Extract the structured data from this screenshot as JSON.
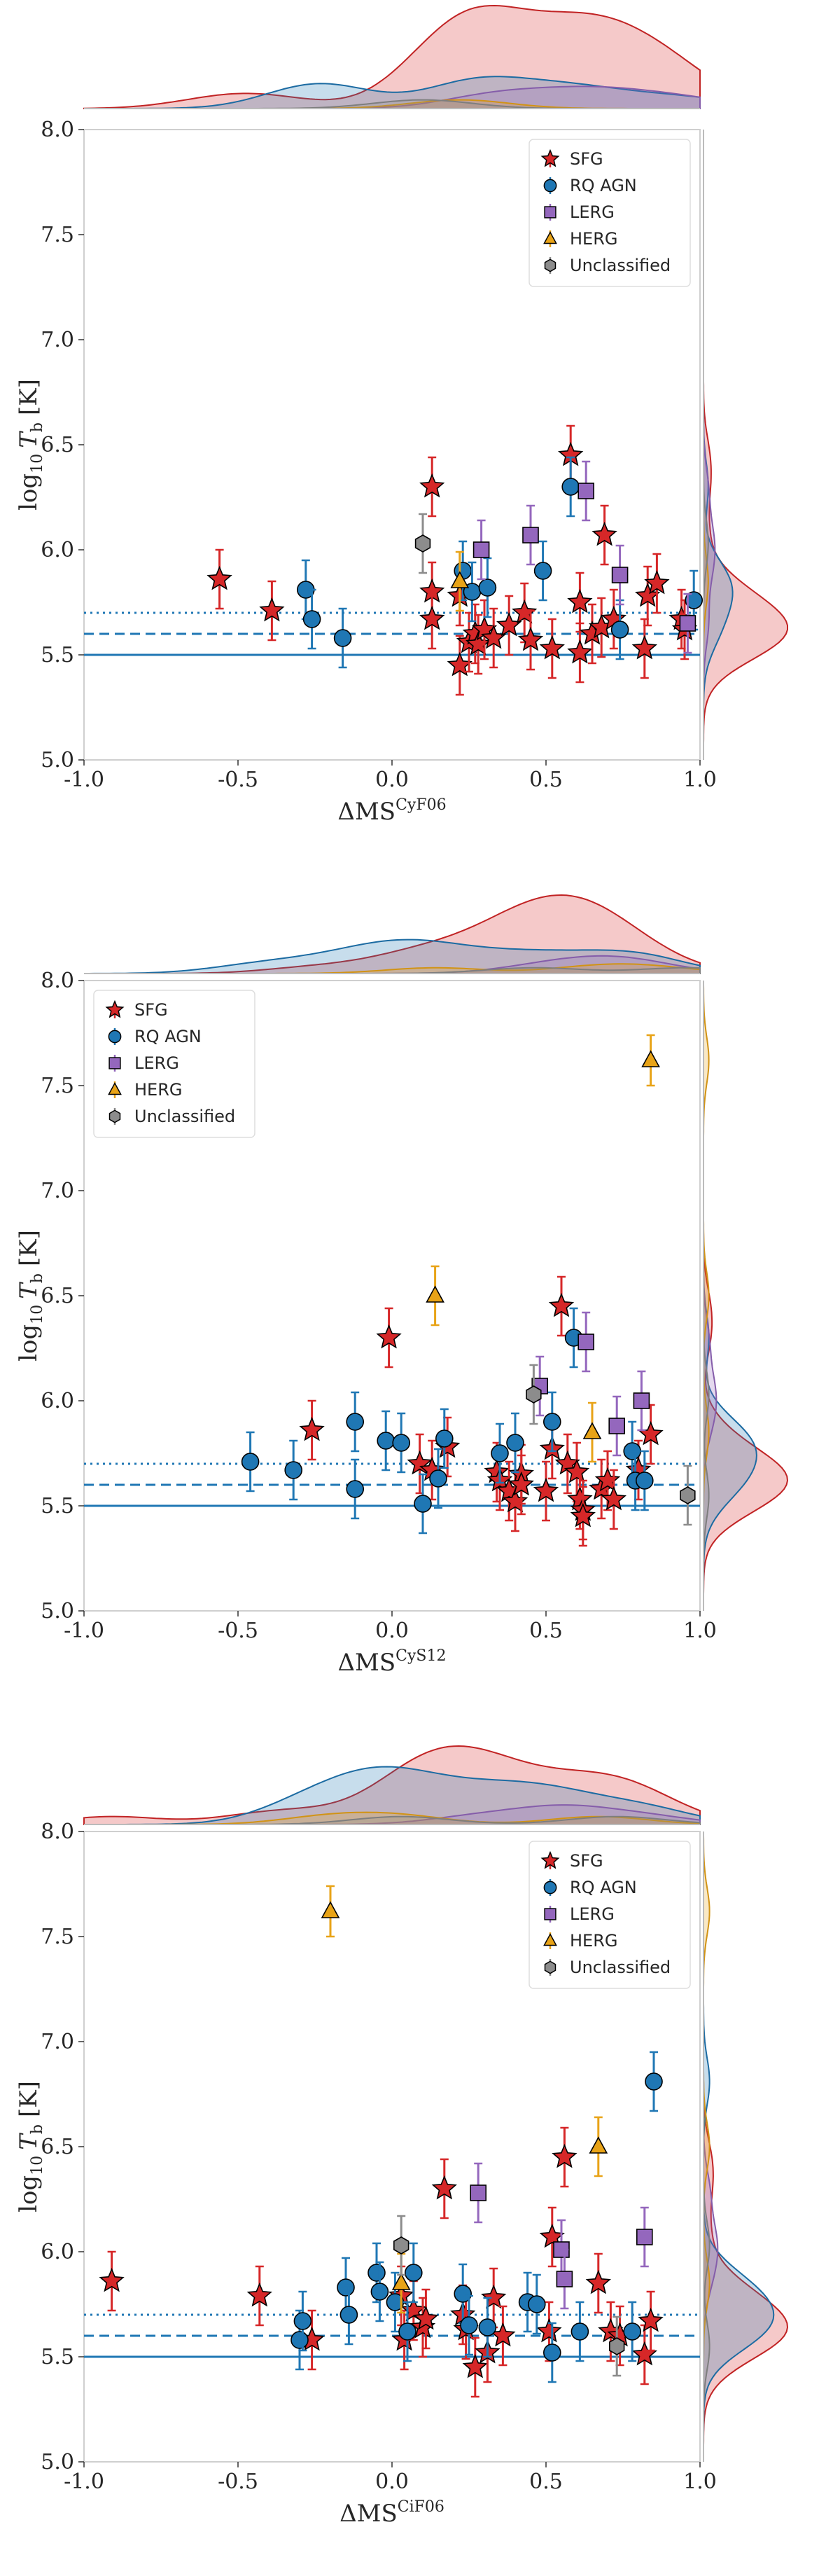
{
  "legend_labels": {
    "SFG": "SFG",
    "RQ AGN": "RQ AGN",
    "LERG": "LERG",
    "HERG": "HERG",
    "Unclassified": "Unclassified"
  },
  "colors": {
    "SFG": "#d62728",
    "RQ AGN": "#1f77b4",
    "LERG": "#9467bd",
    "HERG": "#e8a317",
    "Unclassified": "#8c8c8c"
  },
  "chart_data": [
    {
      "type": "scatter",
      "xlabel_base": "ΔMS",
      "xlabel_sup": "CyF06",
      "ylabel_base": "log",
      "ylabel_sub": "10",
      "ylabel_var": "T",
      "ylabel_varsub": "b",
      "ylabel_unit": "[K]",
      "xlim": [
        -1.0,
        1.0
      ],
      "ylim": [
        5.0,
        8.0
      ],
      "x_ticks": [
        "-1.0",
        "-0.5",
        "0.0",
        "0.5",
        "1.0"
      ],
      "y_ticks": [
        "5.0",
        "5.5",
        "6.0",
        "6.5",
        "7.0",
        "7.5",
        "8.0"
      ],
      "legend_position": "upper-right",
      "reference_lines": [
        5.5,
        5.6,
        5.7
      ],
      "series": [
        {
          "name": "SFG",
          "points": [
            [
              -0.56,
              5.86
            ],
            [
              -0.39,
              5.71
            ],
            [
              0.13,
              6.3
            ],
            [
              0.13,
              5.8
            ],
            [
              0.13,
              5.67
            ],
            [
              0.22,
              5.78
            ],
            [
              0.22,
              5.45
            ],
            [
              0.25,
              5.56
            ],
            [
              0.27,
              5.6
            ],
            [
              0.28,
              5.55
            ],
            [
              0.3,
              5.62
            ],
            [
              0.33,
              5.58
            ],
            [
              0.38,
              5.64
            ],
            [
              0.43,
              5.7
            ],
            [
              0.45,
              5.57
            ],
            [
              0.52,
              5.53
            ],
            [
              0.58,
              6.45
            ],
            [
              0.61,
              5.75
            ],
            [
              0.61,
              5.51
            ],
            [
              0.65,
              5.6
            ],
            [
              0.68,
              5.63
            ],
            [
              0.69,
              6.07
            ],
            [
              0.72,
              5.67
            ],
            [
              0.82,
              5.53
            ],
            [
              0.83,
              5.78
            ],
            [
              0.86,
              5.84
            ],
            [
              0.94,
              5.67
            ],
            [
              0.95,
              5.62
            ]
          ]
        },
        {
          "name": "RQ AGN",
          "points": [
            [
              -0.28,
              5.81
            ],
            [
              -0.26,
              5.67
            ],
            [
              -0.16,
              5.58
            ],
            [
              0.23,
              5.9
            ],
            [
              0.26,
              5.8
            ],
            [
              0.31,
              5.82
            ],
            [
              0.49,
              5.9
            ],
            [
              0.58,
              6.3
            ],
            [
              0.74,
              5.62
            ],
            [
              0.98,
              5.76
            ]
          ]
        },
        {
          "name": "LERG",
          "points": [
            [
              0.29,
              6.0
            ],
            [
              0.45,
              6.07
            ],
            [
              0.63,
              6.28
            ],
            [
              0.74,
              5.88
            ],
            [
              0.96,
              5.65
            ]
          ]
        },
        {
          "name": "HERG",
          "points": [
            [
              0.22,
              5.85
            ]
          ]
        },
        {
          "name": "Unclassified",
          "points": [
            [
              0.1,
              6.03
            ]
          ]
        }
      ]
    },
    {
      "type": "scatter",
      "xlabel_base": "ΔMS",
      "xlabel_sup": "CyS12",
      "ylabel_base": "log",
      "ylabel_sub": "10",
      "ylabel_var": "T",
      "ylabel_varsub": "b",
      "ylabel_unit": "[K]",
      "xlim": [
        -1.0,
        1.0
      ],
      "ylim": [
        5.0,
        8.0
      ],
      "x_ticks": [
        "-1.0",
        "-0.5",
        "0.0",
        "0.5",
        "1.0"
      ],
      "y_ticks": [
        "5.0",
        "5.5",
        "6.0",
        "6.5",
        "7.0",
        "7.5",
        "8.0"
      ],
      "legend_position": "upper-left",
      "reference_lines": [
        5.5,
        5.6,
        5.7
      ],
      "series": [
        {
          "name": "SFG",
          "points": [
            [
              -0.26,
              5.86
            ],
            [
              -0.01,
              6.3
            ],
            [
              0.09,
              5.7
            ],
            [
              0.13,
              5.67
            ],
            [
              0.18,
              5.78
            ],
            [
              0.34,
              5.66
            ],
            [
              0.35,
              5.62
            ],
            [
              0.38,
              5.57
            ],
            [
              0.4,
              5.52
            ],
            [
              0.42,
              5.65
            ],
            [
              0.42,
              5.6
            ],
            [
              0.5,
              5.57
            ],
            [
              0.52,
              5.77
            ],
            [
              0.55,
              6.45
            ],
            [
              0.57,
              5.7
            ],
            [
              0.6,
              5.66
            ],
            [
              0.61,
              5.53
            ],
            [
              0.62,
              5.48
            ],
            [
              0.62,
              5.45
            ],
            [
              0.68,
              5.58
            ],
            [
              0.7,
              5.62
            ],
            [
              0.72,
              5.53
            ],
            [
              0.8,
              5.67
            ],
            [
              0.84,
              5.84
            ]
          ]
        },
        {
          "name": "RQ AGN",
          "points": [
            [
              -0.46,
              5.71
            ],
            [
              -0.32,
              5.67
            ],
            [
              -0.12,
              5.58
            ],
            [
              -0.12,
              5.9
            ],
            [
              -0.02,
              5.81
            ],
            [
              0.03,
              5.8
            ],
            [
              0.1,
              5.51
            ],
            [
              0.15,
              5.63
            ],
            [
              0.17,
              5.82
            ],
            [
              0.35,
              5.75
            ],
            [
              0.4,
              5.8
            ],
            [
              0.52,
              5.9
            ],
            [
              0.59,
              6.3
            ],
            [
              0.78,
              5.76
            ],
            [
              0.79,
              5.62
            ],
            [
              0.82,
              5.62
            ]
          ]
        },
        {
          "name": "LERG",
          "points": [
            [
              0.48,
              6.07
            ],
            [
              0.63,
              6.28
            ],
            [
              0.73,
              5.88
            ],
            [
              0.81,
              6.0
            ]
          ]
        },
        {
          "name": "HERG",
          "points": [
            [
              0.14,
              6.5
            ],
            [
              0.65,
              5.85
            ],
            [
              0.84,
              7.62
            ]
          ]
        },
        {
          "name": "Unclassified",
          "points": [
            [
              0.46,
              6.03
            ],
            [
              0.96,
              5.55
            ]
          ]
        }
      ]
    },
    {
      "type": "scatter",
      "xlabel_base": "ΔMS",
      "xlabel_sup": "CiF06",
      "ylabel_base": "log",
      "ylabel_sub": "10",
      "ylabel_var": "T",
      "ylabel_varsub": "b",
      "ylabel_unit": "[K]",
      "xlim": [
        -1.0,
        1.0
      ],
      "ylim": [
        5.0,
        8.0
      ],
      "x_ticks": [
        "-1.0",
        "-0.5",
        "0.0",
        "0.5",
        "1.0"
      ],
      "y_ticks": [
        "5.0",
        "5.5",
        "6.0",
        "6.5",
        "7.0",
        "7.5",
        "8.0"
      ],
      "legend_position": "upper-right",
      "reference_lines": [
        5.5,
        5.6,
        5.7
      ],
      "series": [
        {
          "name": "SFG",
          "points": [
            [
              -0.91,
              5.86
            ],
            [
              -0.43,
              5.79
            ],
            [
              -0.26,
              5.58
            ],
            [
              0.03,
              5.79
            ],
            [
              0.04,
              5.58
            ],
            [
              0.07,
              5.72
            ],
            [
              0.1,
              5.64
            ],
            [
              0.11,
              5.68
            ],
            [
              0.17,
              6.3
            ],
            [
              0.23,
              5.7
            ],
            [
              0.24,
              5.63
            ],
            [
              0.27,
              5.45
            ],
            [
              0.31,
              5.52
            ],
            [
              0.33,
              5.78
            ],
            [
              0.36,
              5.6
            ],
            [
              0.51,
              5.62
            ],
            [
              0.52,
              6.07
            ],
            [
              0.56,
              6.45
            ],
            [
              0.67,
              5.85
            ],
            [
              0.71,
              5.62
            ],
            [
              0.74,
              5.6
            ],
            [
              0.82,
              5.51
            ],
            [
              0.84,
              5.67
            ]
          ]
        },
        {
          "name": "RQ AGN",
          "points": [
            [
              -0.3,
              5.58
            ],
            [
              -0.29,
              5.67
            ],
            [
              -0.15,
              5.83
            ],
            [
              -0.14,
              5.7
            ],
            [
              -0.05,
              5.9
            ],
            [
              -0.04,
              5.81
            ],
            [
              0.01,
              5.76
            ],
            [
              0.05,
              5.62
            ],
            [
              0.07,
              5.9
            ],
            [
              0.23,
              5.8
            ],
            [
              0.25,
              5.65
            ],
            [
              0.31,
              5.64
            ],
            [
              0.44,
              5.76
            ],
            [
              0.47,
              5.75
            ],
            [
              0.52,
              5.52
            ],
            [
              0.61,
              5.62
            ],
            [
              0.78,
              5.62
            ],
            [
              0.85,
              6.81
            ]
          ]
        },
        {
          "name": "LERG",
          "points": [
            [
              0.28,
              6.28
            ],
            [
              0.55,
              6.01
            ],
            [
              0.56,
              5.87
            ],
            [
              0.82,
              6.07
            ]
          ]
        },
        {
          "name": "HERG",
          "points": [
            [
              -0.2,
              7.62
            ],
            [
              0.03,
              5.85
            ],
            [
              0.67,
              6.5
            ]
          ]
        },
        {
          "name": "Unclassified",
          "points": [
            [
              0.03,
              6.03
            ],
            [
              0.73,
              5.55
            ]
          ]
        }
      ]
    }
  ]
}
